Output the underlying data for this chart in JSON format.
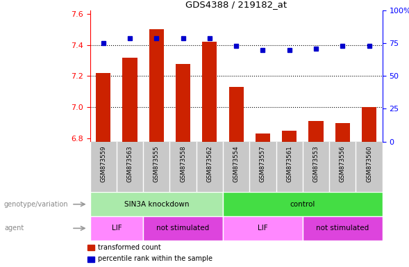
{
  "title": "GDS4388 / 219182_at",
  "samples": [
    "GSM873559",
    "GSM873563",
    "GSM873555",
    "GSM873558",
    "GSM873562",
    "GSM873554",
    "GSM873557",
    "GSM873561",
    "GSM873553",
    "GSM873556",
    "GSM873560"
  ],
  "red_values": [
    7.22,
    7.32,
    7.5,
    7.28,
    7.42,
    7.13,
    6.83,
    6.85,
    6.91,
    6.9,
    7.0
  ],
  "blue_values": [
    75,
    79,
    79,
    79,
    79,
    73,
    70,
    70,
    71,
    73,
    73
  ],
  "ylim_left": [
    6.78,
    7.62
  ],
  "ylim_right": [
    0,
    100
  ],
  "yticks_left": [
    6.8,
    7.0,
    7.2,
    7.4,
    7.6
  ],
  "yticks_right": [
    0,
    25,
    50,
    75,
    100
  ],
  "ytick_right_labels": [
    "0",
    "25",
    "50",
    "75",
    "100%"
  ],
  "grid_lines": [
    7.0,
    7.2,
    7.4
  ],
  "genotype_groups": [
    {
      "label": "SIN3A knockdown",
      "start": 0,
      "end": 5,
      "color": "#AAEAAA"
    },
    {
      "label": "control",
      "start": 5,
      "end": 11,
      "color": "#44DD44"
    }
  ],
  "agent_groups": [
    {
      "label": "LIF",
      "start": 0,
      "end": 2,
      "color": "#FF88FF"
    },
    {
      "label": "not stimulated",
      "start": 2,
      "end": 5,
      "color": "#DD44DD"
    },
    {
      "label": "LIF",
      "start": 5,
      "end": 8,
      "color": "#FF88FF"
    },
    {
      "label": "not stimulated",
      "start": 8,
      "end": 11,
      "color": "#DD44DD"
    }
  ],
  "bar_color": "#CC2200",
  "dot_color": "#0000CC",
  "bar_width": 0.55,
  "legend_items": [
    {
      "color": "#CC2200",
      "label": "transformed count"
    },
    {
      "color": "#0000CC",
      "label": "percentile rank within the sample"
    }
  ],
  "label_genotype": "genotype/variation",
  "label_agent": "agent",
  "sample_bg_color": "#C8C8C8",
  "sample_sep_color": "#FFFFFF"
}
